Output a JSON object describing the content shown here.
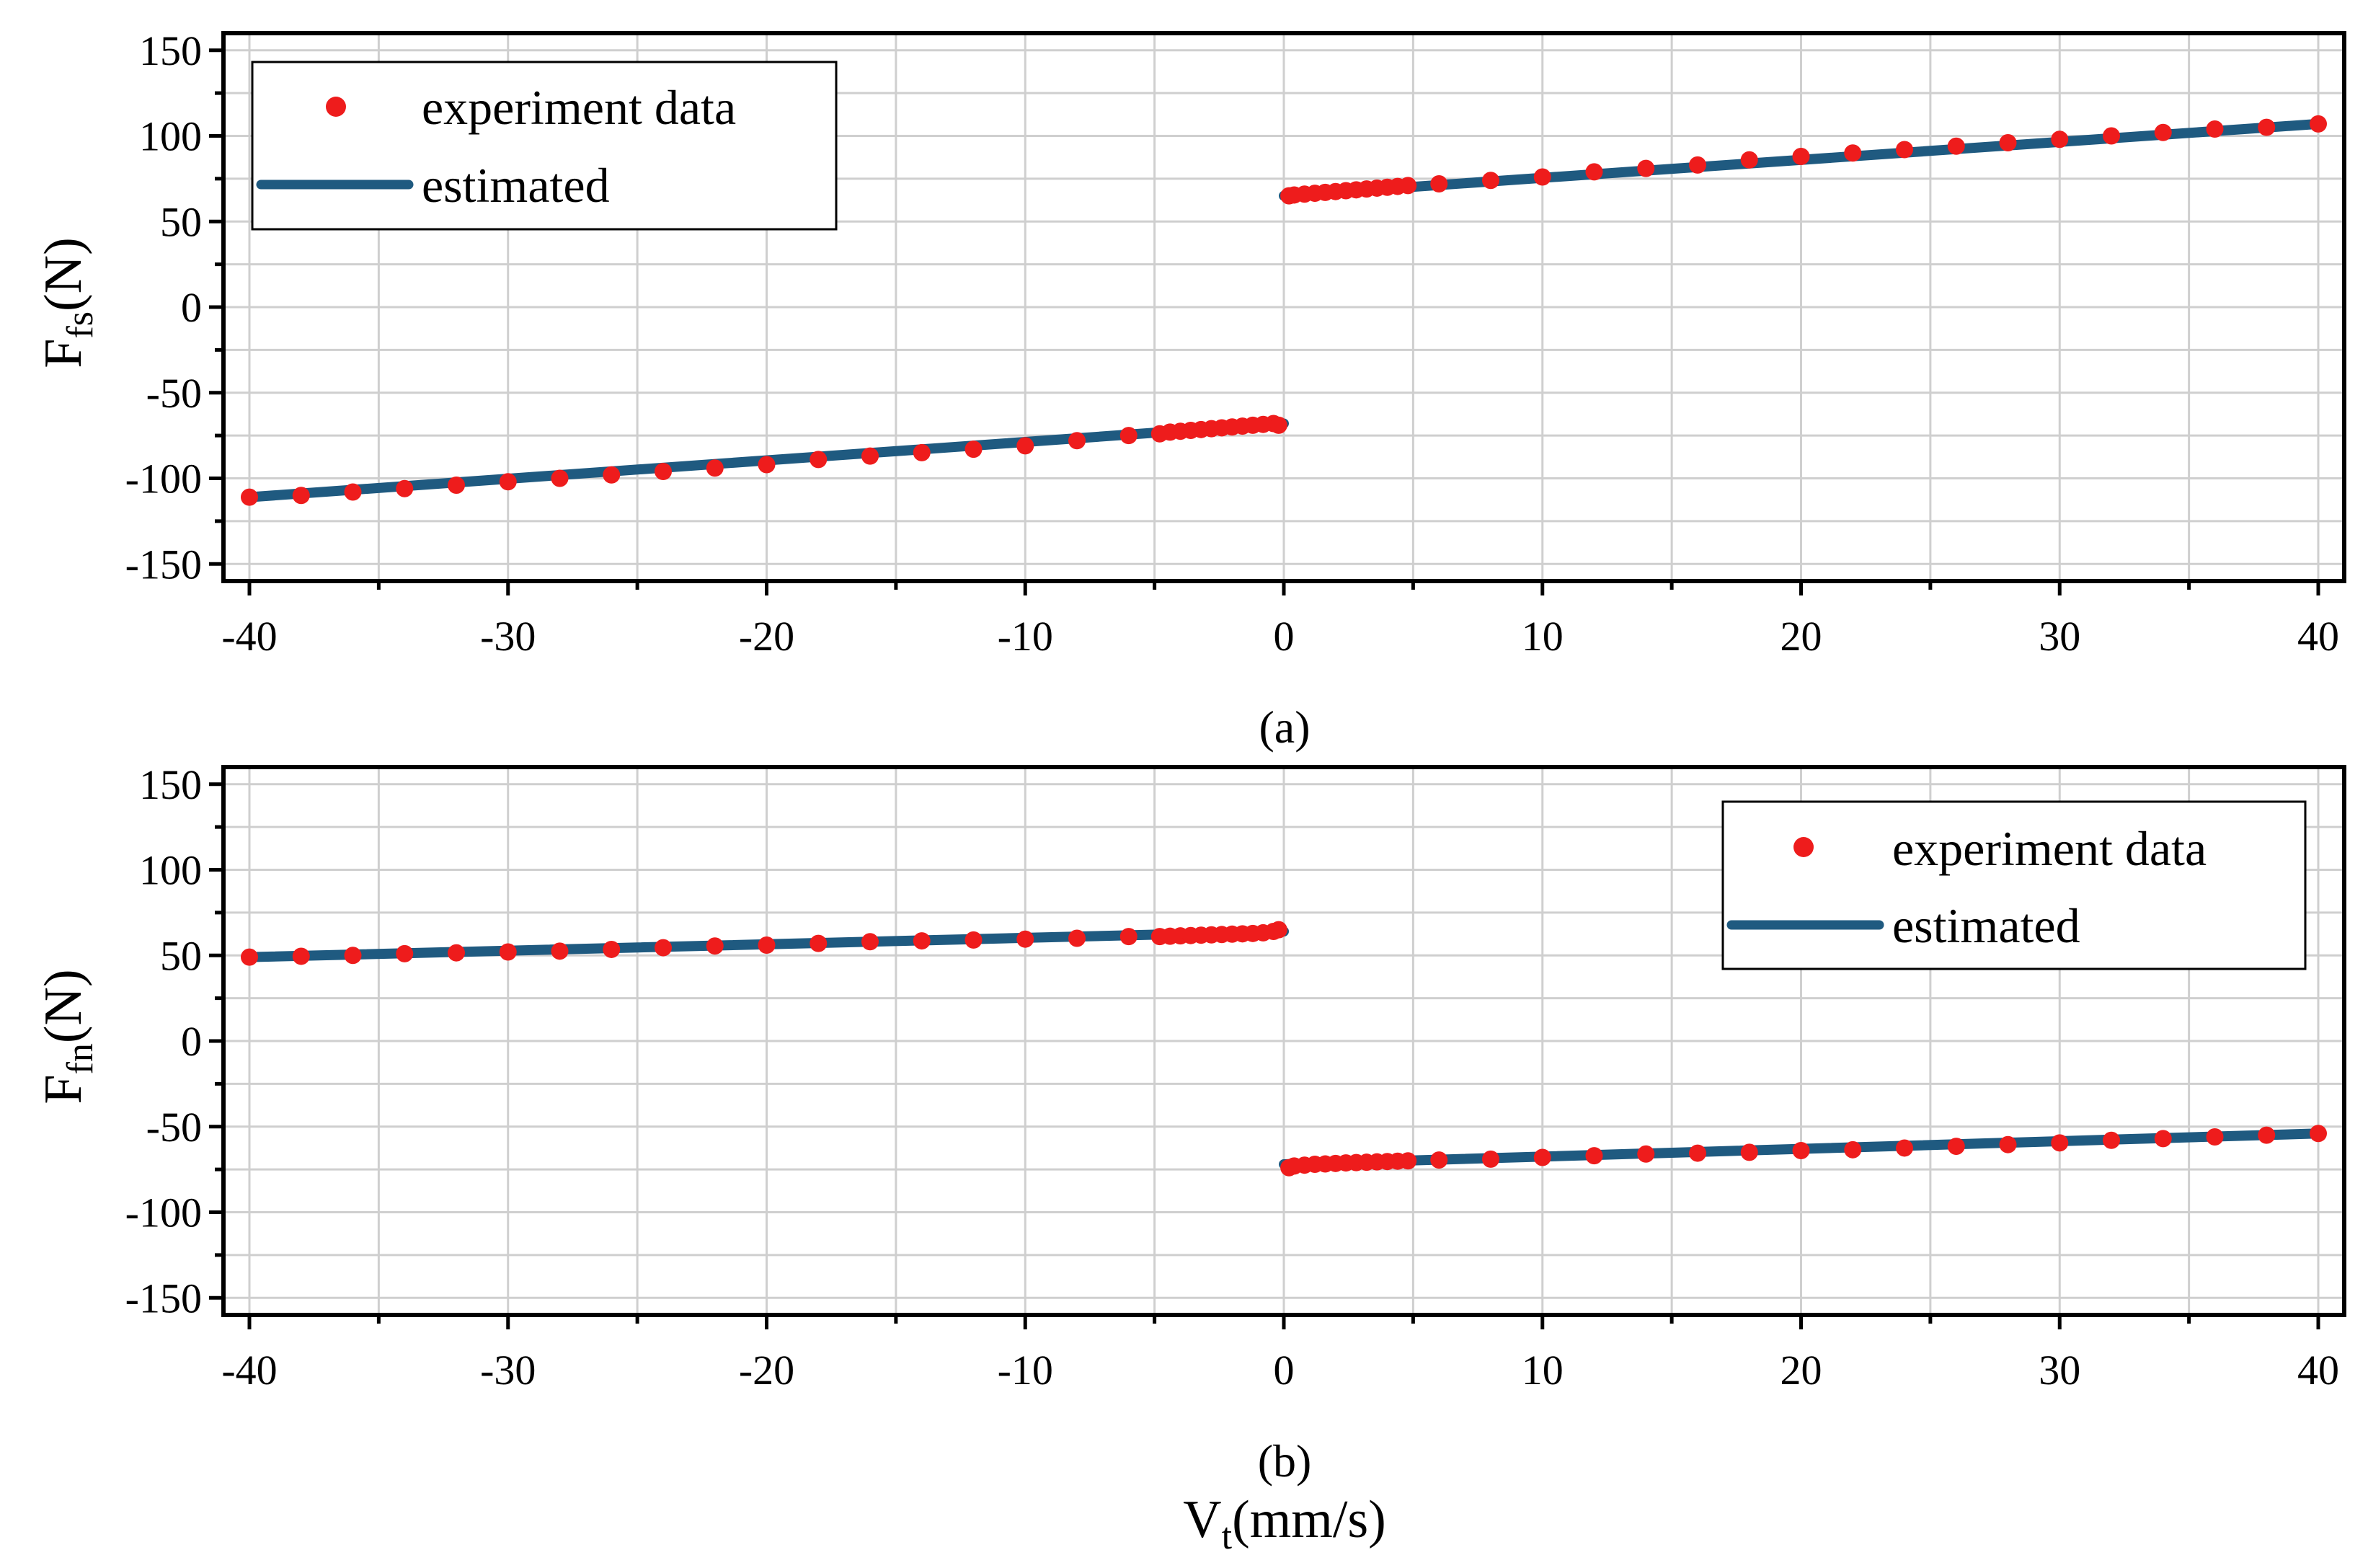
{
  "chart_data": [
    {
      "type": "scatter",
      "panel_label": "(a)",
      "ylabel_main": "F",
      "ylabel_sub": "fs",
      "ylabel_unit": "(N)",
      "xlabel": "",
      "xlim": [
        -40,
        40
      ],
      "ylim": [
        -160,
        160
      ],
      "xticks": [
        -40,
        -30,
        -20,
        -10,
        0,
        10,
        20,
        30,
        40
      ],
      "yticks": [
        -150,
        -100,
        -50,
        0,
        50,
        100,
        150
      ],
      "grid": true,
      "legend_position": "top-left",
      "legend": [
        "experiment data",
        "estimated"
      ],
      "colors": {
        "experiment": "#ee1c1c",
        "estimated": "#1f5a80"
      },
      "series": [
        {
          "name": "experiment data",
          "x": [
            -40,
            -38,
            -36,
            -34,
            -32,
            -30,
            -28,
            -26,
            -24,
            -22,
            -20,
            -18,
            -16,
            -14,
            -12,
            -10,
            -8,
            -6,
            -4.8,
            -4.4,
            -4.0,
            -3.6,
            -3.2,
            -2.8,
            -2.4,
            -2.0,
            -1.6,
            -1.2,
            -0.8,
            -0.4,
            -0.2,
            0.2,
            0.4,
            0.8,
            1.2,
            1.6,
            2.0,
            2.4,
            2.8,
            3.2,
            3.6,
            4.0,
            4.4,
            4.8,
            6,
            8,
            10,
            12,
            14,
            16,
            18,
            20,
            22,
            24,
            26,
            28,
            30,
            32,
            34,
            36,
            38,
            40
          ],
          "y": [
            -111,
            -110,
            -108,
            -106,
            -104,
            -102,
            -100,
            -98,
            -96,
            -94,
            -92,
            -89,
            -87,
            -85,
            -83,
            -81,
            -78,
            -75,
            -74,
            -73,
            -72.5,
            -72,
            -71.5,
            -71,
            -70.5,
            -70,
            -69.5,
            -69,
            -68.5,
            -68,
            -69,
            65,
            65.5,
            66,
            66.5,
            67,
            67.5,
            68,
            68.5,
            69,
            69.5,
            70,
            70.5,
            71,
            72,
            74,
            76,
            79,
            81,
            83,
            86,
            88,
            90,
            92,
            94,
            96,
            98,
            100,
            102,
            104,
            105,
            107
          ]
        },
        {
          "name": "estimated",
          "segments": [
            {
              "x": [
                -40,
                0
              ],
              "y": [
                -111,
                -68
              ]
            },
            {
              "x": [
                0,
                40
              ],
              "y": [
                65,
                107
              ]
            }
          ]
        }
      ]
    },
    {
      "type": "scatter",
      "panel_label": "(b)",
      "ylabel_main": "F",
      "ylabel_sub": "fn",
      "ylabel_unit": "(N)",
      "xlabel_main": "V",
      "xlabel_sub": "t",
      "xlabel_unit": "(mm/s)",
      "xlim": [
        -40,
        40
      ],
      "ylim": [
        -160,
        160
      ],
      "xticks": [
        -40,
        -30,
        -20,
        -10,
        0,
        10,
        20,
        30,
        40
      ],
      "yticks": [
        -150,
        -100,
        -50,
        0,
        50,
        100,
        150
      ],
      "grid": true,
      "legend_position": "top-right",
      "legend": [
        "experiment data",
        "estimated"
      ],
      "colors": {
        "experiment": "#ee1c1c",
        "estimated": "#1f5a80"
      },
      "series": [
        {
          "name": "experiment data",
          "x": [
            -40,
            -38,
            -36,
            -34,
            -32,
            -30,
            -28,
            -26,
            -24,
            -22,
            -20,
            -18,
            -16,
            -14,
            -12,
            -10,
            -8,
            -6,
            -4.8,
            -4.4,
            -4.0,
            -3.6,
            -3.2,
            -2.8,
            -2.4,
            -2.0,
            -1.6,
            -1.2,
            -0.8,
            -0.4,
            -0.2,
            0.2,
            0.4,
            0.8,
            1.2,
            1.6,
            2.0,
            2.4,
            2.8,
            3.2,
            3.6,
            4.0,
            4.4,
            4.8,
            6,
            8,
            10,
            12,
            14,
            16,
            18,
            20,
            22,
            24,
            26,
            28,
            30,
            32,
            34,
            36,
            38,
            40
          ],
          "y": [
            49,
            49.5,
            50,
            51,
            51.5,
            52,
            52.5,
            53.5,
            54.5,
            55.5,
            56,
            57,
            58,
            58.5,
            59,
            59.5,
            60,
            61,
            61,
            61.2,
            61.4,
            61.6,
            61.8,
            62,
            62.2,
            62.4,
            62.6,
            62.8,
            63.2,
            64,
            65,
            -74,
            -73,
            -72.5,
            -72,
            -71.8,
            -71.5,
            -71.2,
            -71,
            -70.8,
            -70.6,
            -70.4,
            -70.2,
            -70,
            -69.5,
            -69,
            -68,
            -67,
            -66,
            -65.5,
            -65,
            -64,
            -63.5,
            -62.5,
            -61.5,
            -60.5,
            -59.5,
            -58,
            -57,
            -56,
            -55,
            -54
          ]
        },
        {
          "name": "estimated",
          "segments": [
            {
              "x": [
                -40,
                0
              ],
              "y": [
                49,
                64
              ]
            },
            {
              "x": [
                0,
                40
              ],
              "y": [
                -72,
                -54
              ]
            }
          ]
        }
      ]
    }
  ]
}
